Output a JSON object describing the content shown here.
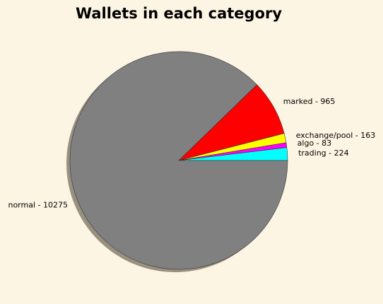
{
  "chart_data": {
    "type": "pie",
    "title": "Wallets in each category",
    "slices": [
      {
        "label": "trading - 224",
        "category": "trading",
        "value": 224,
        "color": "#00ffff"
      },
      {
        "label": "algo - 83",
        "category": "algo",
        "value": 83,
        "color": "#ff00ff"
      },
      {
        "label": "exchange/pool - 163",
        "category": "exchange/pool",
        "value": 163,
        "color": "#ffff00"
      },
      {
        "label": "marked - 965",
        "category": "marked",
        "value": 965,
        "color": "#ff0000"
      },
      {
        "label": "normal - 10275",
        "category": "normal",
        "value": 10275,
        "color": "#808080"
      }
    ],
    "start_angle_deg": 0,
    "direction": "counterclockwise",
    "shadow": true,
    "shadow_color": "#9a9080",
    "edge_color": "#333333",
    "background": "#fdf5e3"
  }
}
